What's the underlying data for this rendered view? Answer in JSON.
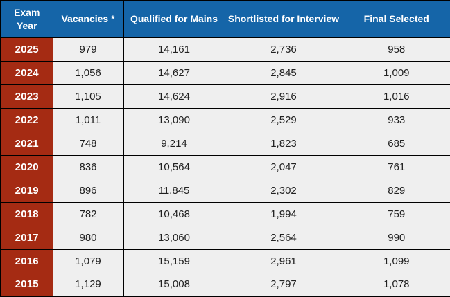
{
  "table": {
    "columns": [
      "Exam Year",
      "Vacancies *",
      "Qualified for Mains",
      "Shortlisted for Interview",
      "Final Selected"
    ],
    "rows": [
      {
        "year": "2025",
        "values": [
          "979",
          "14,161",
          "2,736",
          "958"
        ]
      },
      {
        "year": "2024",
        "values": [
          "1,056",
          "14,627",
          "2,845",
          "1,009"
        ]
      },
      {
        "year": "2023",
        "values": [
          "1,105",
          "14,624",
          "2,916",
          "1,016"
        ]
      },
      {
        "year": "2022",
        "values": [
          "1,011",
          "13,090",
          "2,529",
          "933"
        ]
      },
      {
        "year": "2021",
        "values": [
          "748",
          "9,214",
          "1,823",
          "685"
        ]
      },
      {
        "year": "2020",
        "values": [
          "836",
          "10,564",
          "2,047",
          "761"
        ]
      },
      {
        "year": "2019",
        "values": [
          "896",
          "11,845",
          "2,302",
          "829"
        ]
      },
      {
        "year": "2018",
        "values": [
          "782",
          "10,468",
          "1,994",
          "759"
        ]
      },
      {
        "year": "2017",
        "values": [
          "980",
          "13,060",
          "2,564",
          "990"
        ]
      },
      {
        "year": "2016",
        "values": [
          "1,079",
          "15,159",
          "2,961",
          "1,099"
        ]
      },
      {
        "year": "2015",
        "values": [
          "1,129",
          "15,008",
          "2,797",
          "1,078"
        ]
      }
    ]
  },
  "colors": {
    "header_bg": "#1565A8",
    "year_bg": "#A52B13",
    "cell_bg": "#EFEFEF",
    "header_text": "#FFFFFF",
    "cell_text": "#212121",
    "border": "#000000"
  },
  "chart_data": {
    "type": "table",
    "title": "",
    "columns": [
      "Exam Year",
      "Vacancies *",
      "Qualified for Mains",
      "Shortlisted for Interview",
      "Final Selected"
    ],
    "rows": [
      [
        2025,
        979,
        14161,
        2736,
        958
      ],
      [
        2024,
        1056,
        14627,
        2845,
        1009
      ],
      [
        2023,
        1105,
        14624,
        2916,
        1016
      ],
      [
        2022,
        1011,
        13090,
        2529,
        933
      ],
      [
        2021,
        748,
        9214,
        1823,
        685
      ],
      [
        2020,
        836,
        10564,
        2047,
        761
      ],
      [
        2019,
        896,
        11845,
        2302,
        829
      ],
      [
        2018,
        782,
        10468,
        1994,
        759
      ],
      [
        2017,
        980,
        13060,
        2564,
        990
      ],
      [
        2016,
        1079,
        15159,
        2961,
        1099
      ],
      [
        2015,
        1129,
        15008,
        2797,
        1078
      ]
    ]
  }
}
